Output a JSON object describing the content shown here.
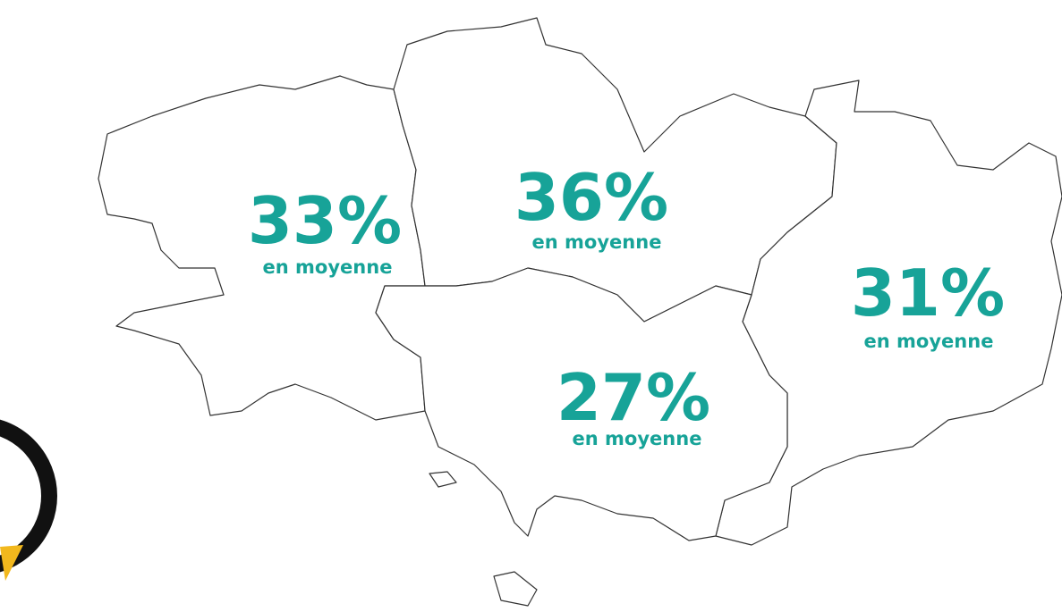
{
  "regions": [
    {
      "label": "33%",
      "sublabel": "en moyenne"
    },
    {
      "label": "36%",
      "sublabel": "en moyenne"
    },
    {
      "label": "31%",
      "sublabel": "en moyenne"
    },
    {
      "label": "27%",
      "sublabel": "en moyenne"
    }
  ]
}
